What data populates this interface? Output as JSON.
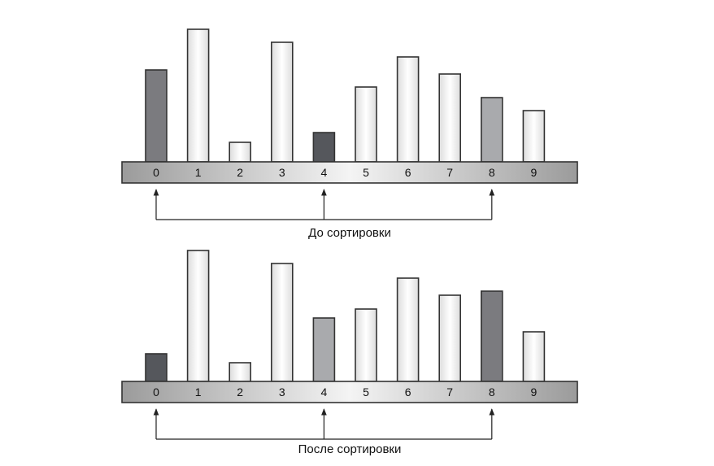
{
  "diagrams": [
    {
      "caption": "До сортировки",
      "indices": [
        "0",
        "1",
        "2",
        "3",
        "4",
        "5",
        "6",
        "7",
        "8",
        "9"
      ],
      "bar_heights": [
        113,
        163,
        24,
        147,
        36,
        92,
        129,
        108,
        79,
        63
      ],
      "bar_styles": [
        "dark",
        "white",
        "white",
        "white",
        "black",
        "white",
        "white",
        "white",
        "light",
        "white"
      ],
      "arrow_targets": [
        0,
        4,
        8
      ]
    },
    {
      "caption": "После сортировки",
      "indices": [
        "0",
        "1",
        "2",
        "3",
        "4",
        "5",
        "6",
        "7",
        "8",
        "9"
      ],
      "bar_heights": [
        34,
        161,
        23,
        145,
        78,
        89,
        127,
        106,
        111,
        61
      ],
      "bar_styles": [
        "black",
        "white",
        "white",
        "white",
        "light",
        "white",
        "white",
        "white",
        "dark",
        "white"
      ],
      "arrow_targets": [
        0,
        4,
        8
      ]
    }
  ],
  "colors": {
    "black": "#55575c",
    "dark": "#7b7b7f",
    "light": "#a9aaad",
    "white_edge": "#dcdcdc",
    "white_mid": "#ffffff",
    "outline": "#333333",
    "strip_mid": "#f4f4f4",
    "strip_edge": "#9b9b9b",
    "arrow": "#222222"
  }
}
